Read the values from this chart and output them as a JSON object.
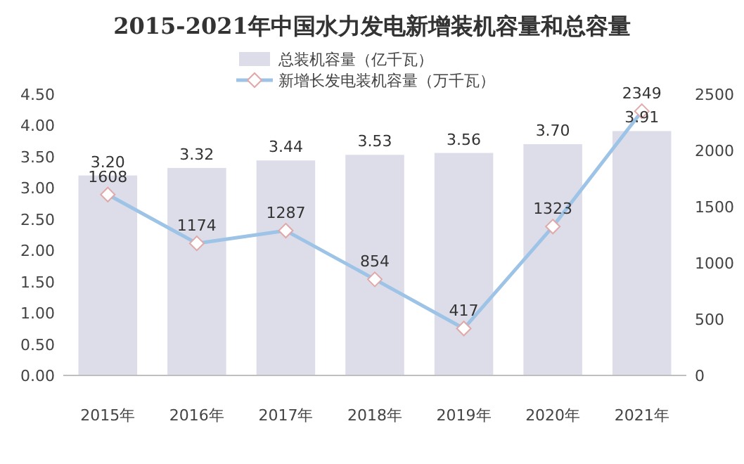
{
  "chart_data": {
    "type": "bar",
    "title": "2015-2021年中国水力发电新增装机容量和总容量",
    "categories": [
      "2015年",
      "2016年",
      "2017年",
      "2018年",
      "2019年",
      "2020年",
      "2021年"
    ],
    "series": [
      {
        "name": "总装机容量（亿千瓦）",
        "color": "#dcdde9",
        "values": [
          3.2,
          3.32,
          3.44,
          3.53,
          3.56,
          3.7,
          3.91
        ],
        "value_labels": [
          "3.20",
          "3.32",
          "3.44",
          "3.53",
          "3.56",
          "3.70",
          "3.91"
        ]
      },
      {
        "name": "新增长发电装机容量（万千瓦）",
        "type": "line",
        "axis": "y2",
        "color": "#9dc3e6",
        "marker": "diamond",
        "values": [
          1608,
          1174,
          1287,
          854,
          417,
          1323,
          2349
        ],
        "value_labels": [
          "1608",
          "1174",
          "1287",
          "854",
          "417",
          "1323",
          "2349"
        ]
      }
    ],
    "ylim": [
      0,
      4.5
    ],
    "yticks": [
      {
        "value": 0,
        "label": "0.00"
      },
      {
        "value": 0.5,
        "label": "0.50"
      },
      {
        "value": 1,
        "label": "1.00"
      },
      {
        "value": 1.5,
        "label": "1.50"
      },
      {
        "value": 2,
        "label": "2.00"
      },
      {
        "value": 2.5,
        "label": "2.50"
      },
      {
        "value": 3,
        "label": "3.00"
      },
      {
        "value": 3.5,
        "label": "3.50"
      },
      {
        "value": 4,
        "label": "4.00"
      },
      {
        "value": 4.5,
        "label": "4.50"
      }
    ],
    "y2lim": [
      0,
      2500
    ],
    "y2ticks": [
      0,
      500,
      1000,
      1500,
      2000,
      2500
    ],
    "legend": "top"
  }
}
